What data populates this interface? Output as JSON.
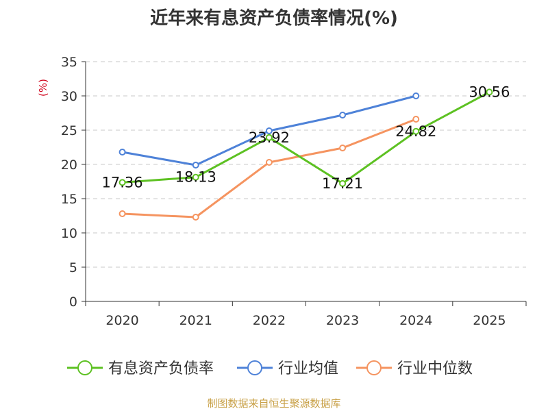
{
  "chart_data": {
    "type": "line",
    "title": "近年来有息资产负债率情况(%)",
    "ylabel": "(%)",
    "xlabel": "",
    "categories": [
      "2020",
      "2021",
      "2022",
      "2023",
      "2024",
      "2025"
    ],
    "ylim": [
      0,
      35
    ],
    "yticks": [
      0,
      5,
      10,
      15,
      20,
      25,
      30,
      35
    ],
    "grid": true,
    "legend": "bottom",
    "series": [
      {
        "name": "有息资产负债率",
        "color": "#5dc122",
        "values": [
          17.36,
          18.13,
          23.92,
          17.21,
          24.82,
          30.56
        ],
        "labels": [
          "17.36",
          "18.13",
          "23.92",
          "17.21",
          "24.82",
          "30.56"
        ]
      },
      {
        "name": "行业均值",
        "color": "#4e82d8",
        "values": [
          21.8,
          19.9,
          24.9,
          27.2,
          30.0,
          null
        ]
      },
      {
        "name": "行业中位数",
        "color": "#f59460",
        "values": [
          12.8,
          12.3,
          20.3,
          22.4,
          26.6,
          null
        ]
      }
    ]
  },
  "source": "制图数据来自恒生聚源数据库"
}
